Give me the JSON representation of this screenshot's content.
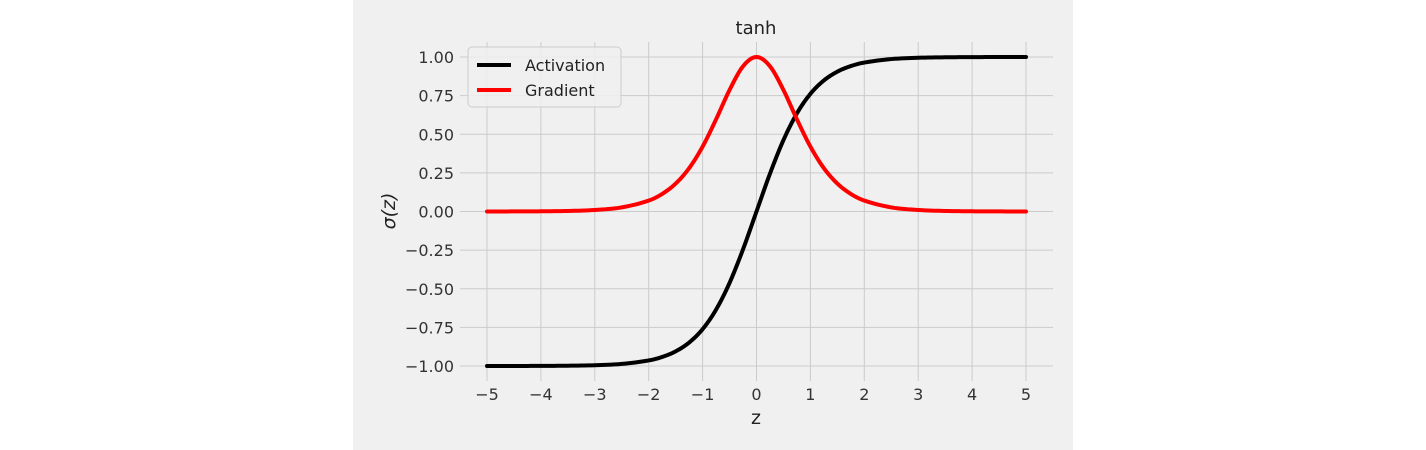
{
  "chart_data": {
    "type": "line",
    "title": "tanh",
    "xlabel": "z",
    "ylabel": "σ(z)",
    "xlim": [
      -5,
      5
    ],
    "ylim": [
      -1.0,
      1.0
    ],
    "xticks": [
      -5,
      -4,
      -3,
      -2,
      -1,
      0,
      1,
      2,
      3,
      4,
      5
    ],
    "yticks": [
      -1.0,
      -0.75,
      -0.5,
      -0.25,
      0.0,
      0.25,
      0.5,
      0.75,
      1.0
    ],
    "xtick_labels": [
      "−5",
      "−4",
      "−3",
      "−2",
      "−1",
      "0",
      "1",
      "2",
      "3",
      "4",
      "5"
    ],
    "ytick_labels": [
      "−1.00",
      "−0.75",
      "−0.50",
      "−0.25",
      "0.00",
      "0.25",
      "0.50",
      "0.75",
      "1.00"
    ],
    "grid": true,
    "legend_position": "upper-left",
    "series": [
      {
        "name": "Activation",
        "color": "#000000",
        "x": [
          -5,
          -4.5,
          -4,
          -3.5,
          -3,
          -2.5,
          -2,
          -1.75,
          -1.5,
          -1.25,
          -1,
          -0.75,
          -0.5,
          -0.25,
          0,
          0.25,
          0.5,
          0.75,
          1,
          1.25,
          1.5,
          1.75,
          2,
          2.5,
          3,
          3.5,
          4,
          4.5,
          5
        ],
        "y": [
          -0.9999,
          -0.9998,
          -0.9993,
          -0.9982,
          -0.9951,
          -0.9866,
          -0.964,
          -0.9414,
          -0.9051,
          -0.8483,
          -0.7616,
          -0.6351,
          -0.4621,
          -0.2449,
          0.0,
          0.2449,
          0.4621,
          0.6351,
          0.7616,
          0.8483,
          0.9051,
          0.9414,
          0.964,
          0.9866,
          0.9951,
          0.9982,
          0.9993,
          0.9998,
          0.9999
        ]
      },
      {
        "name": "Gradient",
        "color": "#ff0000",
        "x": [
          -5,
          -4.5,
          -4,
          -3.5,
          -3,
          -2.5,
          -2,
          -1.75,
          -1.5,
          -1.25,
          -1,
          -0.75,
          -0.5,
          -0.25,
          0,
          0.25,
          0.5,
          0.75,
          1,
          1.25,
          1.5,
          1.75,
          2,
          2.5,
          3,
          3.5,
          4,
          4.5,
          5
        ],
        "y": [
          0.0002,
          0.0005,
          0.0013,
          0.0036,
          0.0099,
          0.0266,
          0.0707,
          0.1138,
          0.1807,
          0.2804,
          0.42,
          0.5966,
          0.7864,
          0.94,
          1.0,
          0.94,
          0.7864,
          0.5966,
          0.42,
          0.2804,
          0.1807,
          0.1138,
          0.0707,
          0.0266,
          0.0099,
          0.0036,
          0.0013,
          0.0005,
          0.0002
        ]
      }
    ]
  }
}
